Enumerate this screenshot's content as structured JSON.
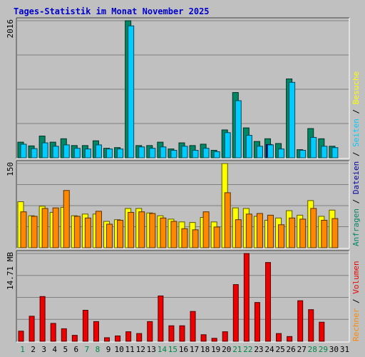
{
  "title": "Tages-Statistik im Monat November 2025",
  "colors": {
    "background": "#c0c0c0",
    "panel": "#c0c0c0",
    "grid": "#808080",
    "anfragen": "#008866",
    "dateien": "#0000aa",
    "seiten": "#00ccff",
    "besuche": "#ffff00",
    "rechner": "#ff8800",
    "volumen": "#ee0000",
    "title_text": "#0000cc",
    "weekend_day": "#008844",
    "weekday": "#000000",
    "label_separator": "#000000"
  },
  "right_legend_top": [
    {
      "text": "Anfragen",
      "key": "anfragen"
    },
    {
      "text": "/",
      "key": "label_separator"
    },
    {
      "text": "Dateien",
      "key": "dateien"
    },
    {
      "text": "/",
      "key": "label_separator"
    },
    {
      "text": "Seiten",
      "key": "seiten"
    },
    {
      "text": "/",
      "key": "label_separator"
    },
    {
      "text": "Besuche",
      "key": "besuche"
    }
  ],
  "right_legend_bottom": [
    {
      "text": "Rechner",
      "key": "rechner"
    },
    {
      "text": "/",
      "key": "label_separator"
    },
    {
      "text": "Volumen",
      "key": "volumen"
    }
  ],
  "chart_data": [
    {
      "type": "bar",
      "panel": "top",
      "ylabel": "2016",
      "ymax": 2016,
      "categories": [
        "1",
        "2",
        "3",
        "4",
        "5",
        "6",
        "7",
        "8",
        "9",
        "10",
        "11",
        "12",
        "13",
        "14",
        "15",
        "16",
        "17",
        "18",
        "19",
        "20",
        "21",
        "22",
        "23",
        "24",
        "25",
        "26",
        "27",
        "28",
        "29",
        "30"
      ],
      "weekend": [
        1,
        7,
        8,
        14,
        15,
        21,
        22,
        28,
        29
      ],
      "series": [
        {
          "name": "Anfragen",
          "color_key": "anfragen",
          "values": [
            230,
            175,
            320,
            230,
            280,
            180,
            180,
            250,
            140,
            150,
            2016,
            180,
            180,
            230,
            130,
            220,
            180,
            200,
            110,
            410,
            960,
            440,
            240,
            280,
            210,
            1160,
            120,
            430,
            280,
            170
          ]
        },
        {
          "name": "Dateien",
          "color_key": "dateien",
          "values": [
            0,
            0,
            0,
            0,
            0,
            0,
            0,
            0,
            0,
            0,
            0,
            0,
            0,
            0,
            0,
            0,
            0,
            0,
            0,
            0,
            0,
            0,
            0,
            195,
            0,
            0,
            0,
            0,
            0,
            0
          ]
        },
        {
          "name": "Seiten",
          "color_key": "seiten",
          "values": [
            200,
            135,
            220,
            170,
            190,
            140,
            130,
            190,
            130,
            130,
            1940,
            160,
            140,
            160,
            110,
            170,
            110,
            140,
            90,
            370,
            840,
            330,
            170,
            190,
            130,
            1110,
            110,
            300,
            170,
            150
          ]
        }
      ]
    },
    {
      "type": "bar",
      "panel": "middle",
      "ylabel": "150",
      "ymax": 150,
      "categories": [
        "1",
        "2",
        "3",
        "4",
        "5",
        "6",
        "7",
        "8",
        "9",
        "10",
        "11",
        "12",
        "13",
        "14",
        "15",
        "16",
        "17",
        "18",
        "19",
        "20",
        "21",
        "22",
        "23",
        "24",
        "25",
        "26",
        "27",
        "28",
        "29",
        "30"
      ],
      "series": [
        {
          "name": "Besuche",
          "color_key": "besuche",
          "values": [
            82,
            57,
            74,
            63,
            72,
            57,
            60,
            60,
            47,
            50,
            70,
            70,
            62,
            57,
            51,
            46,
            45,
            54,
            46,
            150,
            71,
            70,
            56,
            49,
            53,
            66,
            58,
            84,
            56,
            67
          ]
        },
        {
          "name": "Rechner",
          "color_key": "rechner",
          "values": [
            64,
            56,
            70,
            71,
            102,
            56,
            53,
            65,
            42,
            49,
            63,
            64,
            61,
            53,
            47,
            34,
            32,
            64,
            37,
            98,
            50,
            60,
            61,
            58,
            41,
            53,
            51,
            70,
            49,
            52
          ]
        }
      ]
    },
    {
      "type": "bar",
      "panel": "bottom",
      "ylabel": "14.71 MB",
      "ymax": 14.71,
      "categories": [
        "1",
        "2",
        "3",
        "4",
        "5",
        "6",
        "7",
        "8",
        "9",
        "10",
        "11",
        "12",
        "13",
        "14",
        "15",
        "16",
        "17",
        "18",
        "19",
        "20",
        "21",
        "22",
        "23",
        "24",
        "25",
        "26",
        "27",
        "28",
        "29",
        "30"
      ],
      "series": [
        {
          "name": "Volumen",
          "color_key": "volumen",
          "values": [
            1.7,
            4.2,
            7.5,
            3.0,
            2.1,
            1.0,
            5.2,
            3.3,
            0.6,
            0.9,
            1.6,
            1.3,
            3.3,
            7.6,
            2.6,
            2.6,
            5.0,
            1.1,
            0.5,
            1.6,
            9.5,
            14.71,
            6.5,
            13.2,
            1.3,
            0.8,
            6.8,
            5.3,
            3.2,
            null
          ]
        }
      ]
    }
  ]
}
